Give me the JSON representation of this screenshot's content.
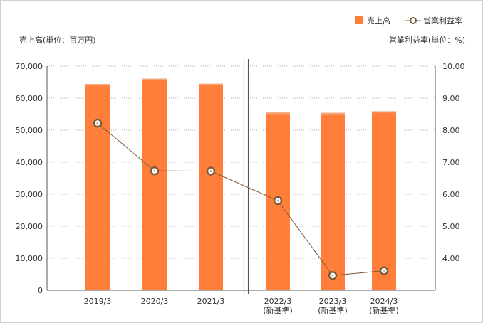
{
  "chart_data": {
    "type": "bar",
    "categories": [
      {
        "label": "2019/3",
        "sub": ""
      },
      {
        "label": "2020/3",
        "sub": ""
      },
      {
        "label": "2021/3",
        "sub": ""
      },
      {
        "label": "2022/3",
        "sub": "(新基準)"
      },
      {
        "label": "2023/3",
        "sub": "(新基準)"
      },
      {
        "label": "2024/3",
        "sub": "(新基準)"
      }
    ],
    "series": [
      {
        "name": "売上高",
        "type": "bar",
        "axis": "left",
        "color": "#ff7f3a",
        "values": [
          64400,
          66100,
          64500,
          55500,
          55400,
          55900
        ]
      },
      {
        "name": "営業利益率",
        "type": "line",
        "axis": "right",
        "color": "#7a5a3a",
        "values": [
          8.22,
          6.73,
          6.72,
          5.8,
          3.46,
          3.61
        ]
      }
    ],
    "ylabel_left": "売上高(単位：百万円)",
    "ylabel_right": "営業利益率(単位：%)",
    "ylim_left": [
      0,
      70000
    ],
    "ylim_right": [
      3.0,
      10.0
    ],
    "yticks_left": [
      "0",
      "10,000",
      "20,000",
      "30,000",
      "40,000",
      "50,000",
      "60,000",
      "70,000"
    ],
    "yticks_right": [
      "4.00",
      "5.00",
      "6.00",
      "7.00",
      "8.00",
      "9.00",
      "10.00"
    ],
    "grid": true,
    "legend_position": "top-right",
    "axis_break_between": [
      "2021/3",
      "2022/3"
    ]
  }
}
